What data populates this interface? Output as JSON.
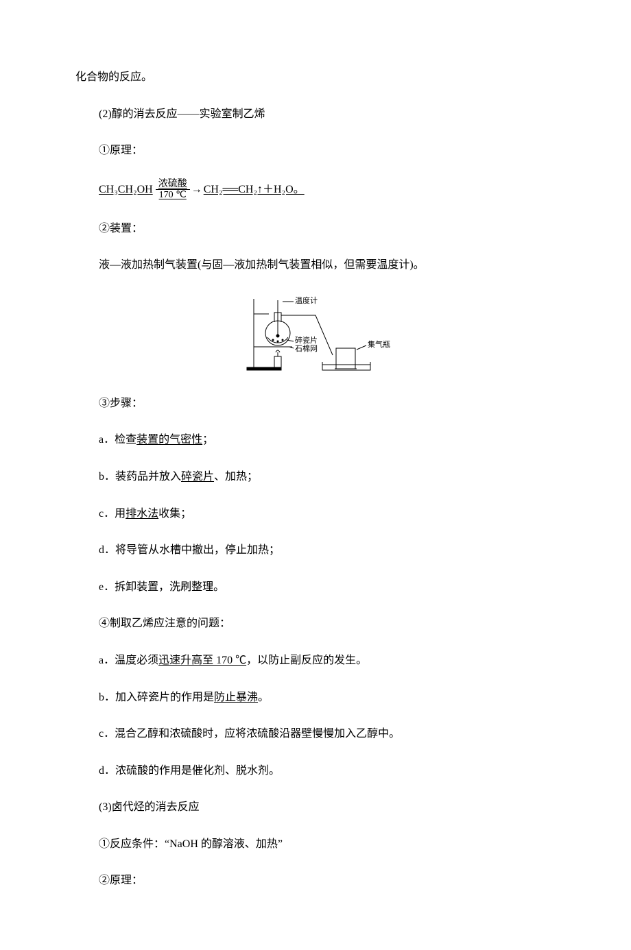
{
  "page": {
    "background": "#ffffff",
    "textColor": "#000000",
    "fontFamily": "SimSun",
    "fontSizePx": 16,
    "widthPx": 920,
    "heightPx": 1302
  },
  "line_top": "化合物的反应。",
  "section2": {
    "title": "(2)醇的消去反应——实验室制乙烯",
    "item1_label": "①原理：",
    "equation": {
      "lhs": "CH₃CH₂OH",
      "condTop": "浓硫酸",
      "condBot": "170  ℃",
      "rhs": "CH₂══CH₂↑＋H₂O。",
      "underlineParts": [
        "CH₃CH₂OH",
        "CH₂══CH₂↑＋H₂O"
      ]
    },
    "item2_label": "②装置：",
    "item2_text": "液—液加热制气装置(与固—液加热制气装置相似，但需要温度计)。",
    "diagram": {
      "type": "apparatus-illustration",
      "labels": {
        "thermometer": "温度计",
        "chips": "碎瓷片",
        "gauze": "石棉网",
        "jar": "集气瓶"
      },
      "colors": {
        "stroke": "#000000",
        "fill": "#ffffff",
        "waterFill": "#ffffff"
      },
      "widthPx": 240,
      "heightPx": 120
    },
    "item3_label": "③步骤：",
    "steps": [
      {
        "prefix": "a．",
        "pre": "检查",
        "u": "装置的气密性",
        "post": "；"
      },
      {
        "prefix": "b．",
        "pre": "装药品并放入",
        "u": "碎瓷片",
        "post": "、加热；"
      },
      {
        "prefix": "c．",
        "pre": "用",
        "u": "排水法",
        "post": "收集；"
      },
      {
        "prefix": "d．",
        "pre": "将导管从水槽中撤出，停止加热；",
        "u": "",
        "post": ""
      },
      {
        "prefix": "e．",
        "pre": "拆卸装置，洗刷整理。",
        "u": "",
        "post": ""
      }
    ],
    "item4_label": "④制取乙烯应注意的问题：",
    "notes": [
      {
        "prefix": "a．",
        "pre": "温度必须",
        "u": "迅速升高至 170 ℃",
        "post": "，以防止副反应的发生。"
      },
      {
        "prefix": "b．",
        "pre": "加入碎瓷片的作用是",
        "u": "防止暴沸",
        "post": "。"
      },
      {
        "prefix": "c．",
        "pre": "混合乙醇和浓硫酸时，应将浓硫酸沿器壁慢慢加入乙醇中。",
        "u": "",
        "post": ""
      },
      {
        "prefix": "d．",
        "pre": "浓硫酸的作用是催化剂、脱水剂。",
        "u": "",
        "post": ""
      }
    ]
  },
  "section3": {
    "title": "(3)卤代烃的消去反应",
    "item1": "①反应条件：“NaOH 的醇溶液、加热”",
    "item2": "②原理："
  }
}
